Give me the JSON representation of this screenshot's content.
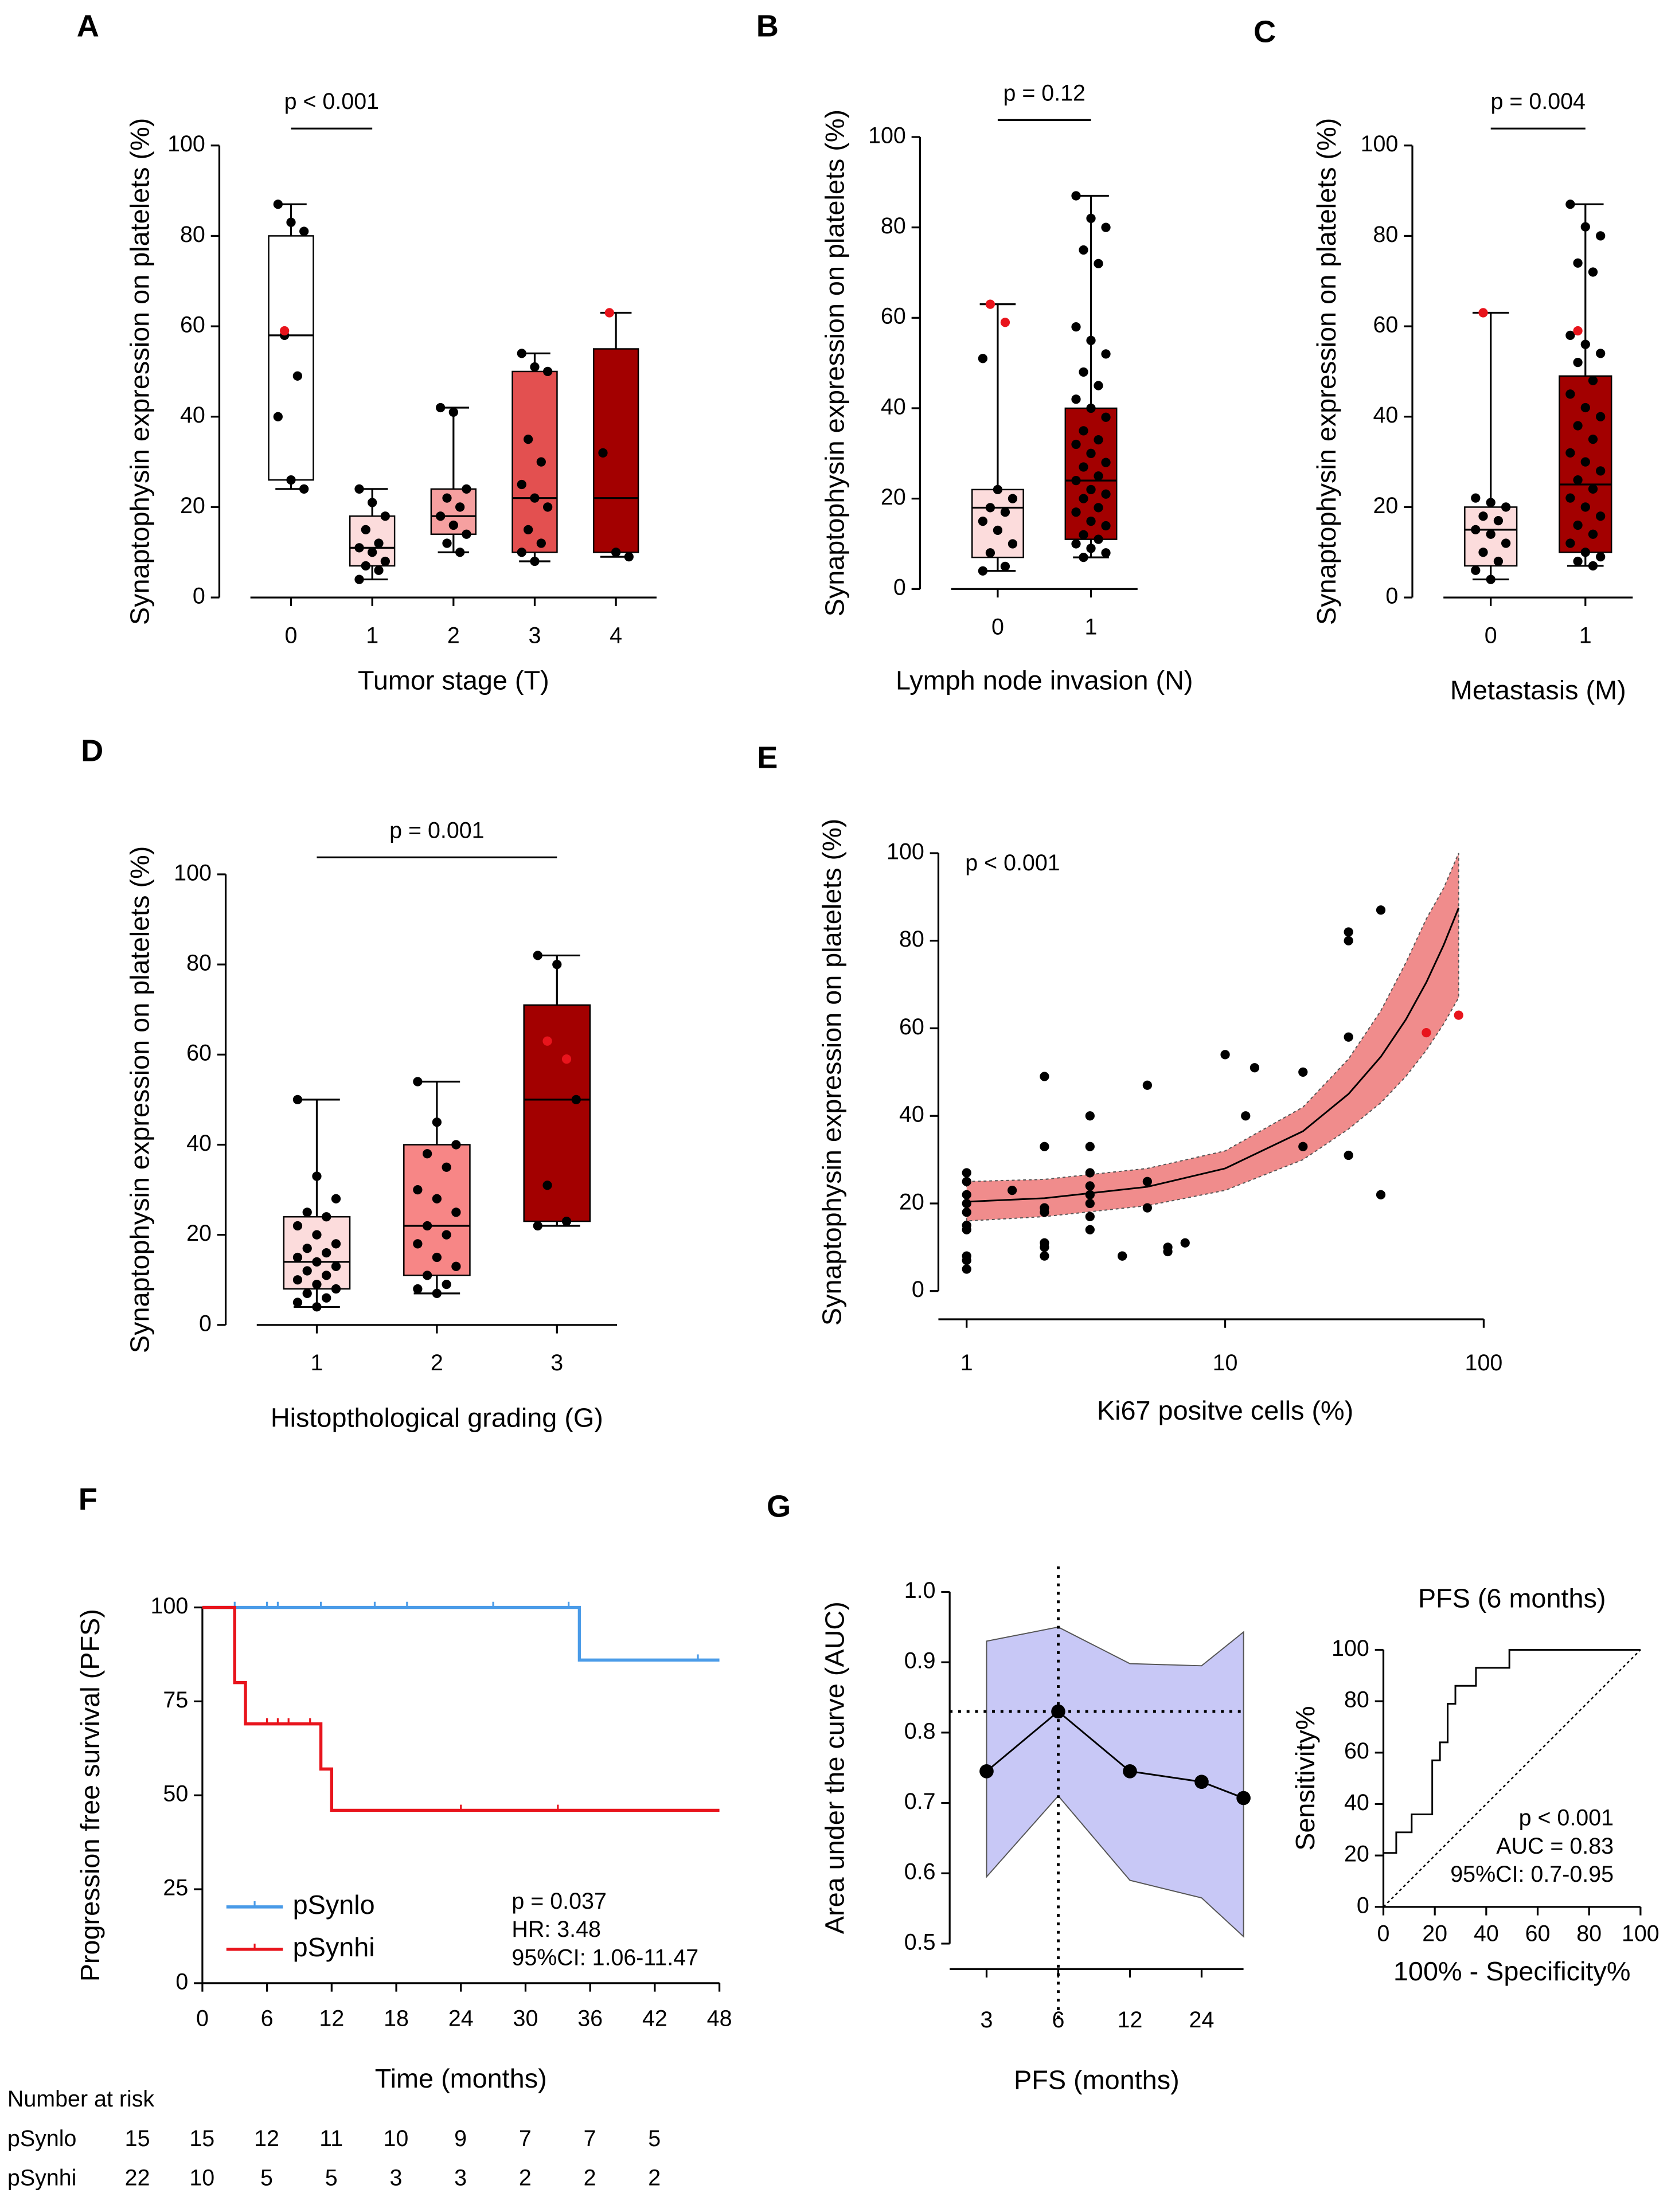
{
  "chart_data": [
    {
      "type": "box",
      "panel": "A",
      "y_label": "Synaptophysin expression on platelets (%)",
      "x_label": "Tumor stage (T)",
      "categories": [
        "0",
        "1",
        "2",
        "3",
        "4"
      ],
      "ylim": [
        0,
        100
      ],
      "yticks": [
        0,
        20,
        40,
        60,
        80,
        100
      ],
      "point_color": "#000000",
      "highlight_color": "#e8141c",
      "groups": [
        {
          "color": "#ffffff",
          "box": [
            24,
            26,
            58,
            80,
            87
          ],
          "points": [
            87,
            83,
            81,
            58,
            49,
            40,
            26,
            24
          ],
          "highlight_points": [
            59
          ]
        },
        {
          "color": "#fcdcdc",
          "box": [
            4,
            7,
            11,
            18,
            24
          ],
          "points": [
            24,
            21,
            18,
            15,
            12,
            11,
            10,
            8,
            7,
            6,
            4
          ],
          "highlight_points": []
        },
        {
          "color": "#f6a0a0",
          "box": [
            10,
            14,
            18,
            24,
            42
          ],
          "points": [
            42,
            41,
            24,
            22,
            20,
            18,
            16,
            14,
            12,
            10
          ],
          "highlight_points": []
        },
        {
          "color": "#e35050",
          "box": [
            8,
            10,
            22,
            50,
            54
          ],
          "points": [
            54,
            51,
            50,
            35,
            30,
            25,
            22,
            20,
            15,
            12,
            10,
            8
          ],
          "highlight_points": []
        },
        {
          "color": "#a30000",
          "box": [
            9,
            10,
            22,
            55,
            63
          ],
          "points": [
            32,
            10,
            9
          ],
          "highlight_points": [
            63
          ]
        }
      ],
      "annotation": [
        "p < 0.001"
      ],
      "bracket": [
        "0",
        "1"
      ]
    },
    {
      "type": "box",
      "panel": "B",
      "y_label": "Synaptophysin expression on platelets (%)",
      "x_label": "Lymph node invasion (N)",
      "categories": [
        "0",
        "1"
      ],
      "ylim": [
        0,
        100
      ],
      "yticks": [
        0,
        20,
        40,
        60,
        80,
        100
      ],
      "point_color": "#000000",
      "highlight_color": "#e8141c",
      "groups": [
        {
          "color": "#fcdcdc",
          "box": [
            4,
            7,
            18,
            22,
            63
          ],
          "points": [
            51,
            22,
            20,
            18,
            17,
            15,
            13,
            10,
            8,
            5,
            4
          ],
          "highlight_points": [
            63,
            59
          ]
        },
        {
          "color": "#a30000",
          "box": [
            7,
            11,
            24,
            40,
            87
          ],
          "points": [
            87,
            82,
            80,
            75,
            72,
            58,
            55,
            52,
            48,
            45,
            42,
            40,
            38,
            35,
            33,
            32,
            30,
            28,
            27,
            25,
            24,
            22,
            21,
            20,
            18,
            17,
            15,
            14,
            12,
            11,
            10,
            9,
            8,
            7
          ],
          "highlight_points": []
        }
      ],
      "annotation": [
        "p = 0.12"
      ],
      "bracket": [
        "0",
        "1"
      ]
    },
    {
      "type": "box",
      "panel": "C",
      "y_label": "Synaptophysin expression on platelets (%)",
      "x_label": "Metastasis (M)",
      "categories": [
        "0",
        "1"
      ],
      "ylim": [
        0,
        100
      ],
      "yticks": [
        0,
        20,
        40,
        60,
        80,
        100
      ],
      "point_color": "#000000",
      "highlight_color": "#e8141c",
      "groups": [
        {
          "color": "#fcdcdc",
          "box": [
            4,
            7,
            15,
            20,
            63
          ],
          "points": [
            22,
            21,
            20,
            18,
            17,
            15,
            14,
            12,
            10,
            8,
            6,
            4
          ],
          "highlight_points": [
            63
          ]
        },
        {
          "color": "#a30000",
          "box": [
            7,
            10,
            25,
            49,
            87
          ],
          "points": [
            87,
            82,
            80,
            74,
            72,
            58,
            56,
            54,
            52,
            48,
            45,
            42,
            40,
            38,
            35,
            32,
            30,
            28,
            26,
            24,
            22,
            20,
            18,
            16,
            14,
            12,
            10,
            9,
            8,
            7
          ],
          "highlight_points": [
            59
          ]
        }
      ],
      "annotation": [
        "p = 0.004"
      ],
      "bracket": [
        "0",
        "1"
      ]
    },
    {
      "type": "box",
      "panel": "D",
      "y_label": "Synaptophysin expression on platelets (%)",
      "x_label": "Histopthological grading (G)",
      "categories": [
        "1",
        "2",
        "3"
      ],
      "ylim": [
        0,
        100
      ],
      "yticks": [
        0,
        20,
        40,
        60,
        80,
        100
      ],
      "point_color": "#000000",
      "highlight_color": "#e8141c",
      "groups": [
        {
          "color": "#fcdcdc",
          "box": [
            4,
            8,
            14,
            24,
            50
          ],
          "points": [
            50,
            33,
            28,
            25,
            24,
            22,
            20,
            18,
            17,
            16,
            15,
            14,
            13,
            12,
            11,
            10,
            9,
            8,
            7,
            6,
            5,
            4
          ],
          "highlight_points": []
        },
        {
          "color": "#f78686",
          "box": [
            7,
            11,
            22,
            40,
            54
          ],
          "points": [
            54,
            45,
            40,
            38,
            35,
            30,
            28,
            25,
            22,
            20,
            18,
            15,
            13,
            11,
            9,
            8,
            7
          ],
          "highlight_points": []
        },
        {
          "color": "#a30000",
          "box": [
            22,
            23,
            50,
            71,
            82
          ],
          "points": [
            82,
            80,
            50,
            31,
            23,
            22
          ],
          "highlight_points": [
            63,
            59
          ]
        }
      ],
      "annotation": [
        "p = 0.001"
      ],
      "bracket": [
        "1",
        "3"
      ]
    },
    {
      "type": "scatter",
      "panel": "E",
      "y_label": "Synaptophysin expression on platelets (%)",
      "x_label": "Ki67 positve cells (%)",
      "xlog": true,
      "xlim": [
        1,
        100
      ],
      "xticks": [
        1,
        10,
        100
      ],
      "ylim": [
        0,
        100
      ],
      "yticks": [
        0,
        20,
        40,
        60,
        80,
        100
      ],
      "point_color": "#000000",
      "highlight_color": "#e8141c",
      "x": [
        1,
        1,
        1,
        1,
        1,
        1,
        1,
        1,
        1,
        1,
        1.5,
        2,
        2,
        2,
        2,
        2,
        2,
        2,
        3,
        3,
        3,
        3,
        3,
        3,
        3,
        3,
        4,
        4,
        5,
        5,
        5,
        6,
        6,
        7,
        10,
        12,
        13,
        20,
        20,
        30,
        30,
        30,
        30,
        40,
        40
      ],
      "y": [
        5,
        7,
        8,
        14,
        15,
        18,
        20,
        22,
        25,
        27,
        23,
        8,
        10,
        11,
        18,
        19,
        33,
        49,
        14,
        17,
        20,
        22,
        24,
        27,
        33,
        40,
        8,
        8,
        19,
        25,
        47,
        9,
        10,
        11,
        54,
        40,
        51,
        33,
        50,
        31,
        58,
        80,
        82,
        87,
        22
      ],
      "highlight_x": [
        60,
        80
      ],
      "highlight_y": [
        59,
        63
      ],
      "fit": {
        "color": "#000000",
        "band_color": "#f08c8c",
        "x": [
          1,
          2,
          5,
          10,
          20,
          30,
          40,
          50,
          60,
          70,
          80
        ],
        "y": [
          20.4,
          21.2,
          23.8,
          28,
          36.5,
          45,
          53.5,
          62,
          70.5,
          79,
          87.5
        ],
        "lower": [
          16,
          17,
          19.5,
          23,
          30,
          37,
          43,
          49,
          55,
          61,
          67
        ],
        "upper": [
          25,
          25.5,
          28,
          32,
          42,
          53,
          64,
          75,
          85,
          92,
          100
        ]
      },
      "annotation": [
        "p < 0.001"
      ]
    },
    {
      "type": "line",
      "panel": "F",
      "y_label": "Progression free survival (PFS)",
      "x_label": "Time (months)",
      "xlim": [
        0,
        48
      ],
      "xticks": [
        0,
        6,
        12,
        18,
        24,
        30,
        36,
        42,
        48
      ],
      "ylim": [
        0,
        100
      ],
      "yticks": [
        0,
        25,
        50,
        75,
        100
      ],
      "series": [
        {
          "name": "pSynlo",
          "color": "#4a9be8",
          "x": [
            0,
            35,
            35,
            48
          ],
          "values": [
            100,
            100,
            86,
            86
          ],
          "censored_x": [
            3,
            6,
            7,
            11,
            16,
            19,
            27,
            34,
            46
          ],
          "censored_y": [
            100,
            100,
            100,
            100,
            100,
            100,
            100,
            100,
            86
          ]
        },
        {
          "name": "pSynhi",
          "color": "#e8141c",
          "x": [
            0,
            3,
            3,
            4,
            4,
            11,
            11,
            12,
            12,
            48
          ],
          "values": [
            100,
            100,
            80,
            80,
            69,
            69,
            57,
            57,
            46,
            46
          ],
          "censored_x": [
            6,
            7,
            8,
            10,
            24,
            33
          ],
          "censored_y": [
            69,
            69,
            69,
            69,
            46,
            46
          ]
        }
      ],
      "annotation": [
        "p = 0.037",
        "HR: 3.48",
        "95%CI: 1.06-11.47"
      ],
      "risk_table": {
        "title": "Number at risk",
        "rows": [
          {
            "label": "pSynlo",
            "values": [
              15,
              15,
              12,
              11,
              10,
              9,
              7,
              7,
              5
            ]
          },
          {
            "label": "pSynhi",
            "values": [
              22,
              10,
              5,
              5,
              3,
              3,
              2,
              2,
              2
            ]
          }
        ]
      }
    },
    {
      "type": "line",
      "panel": "G",
      "y_label": "Area under the curve (AUC)",
      "x_label": "PFS (months)",
      "xlog": true,
      "xlim": [
        2.1,
        36
      ],
      "xticks": [
        3,
        6,
        12,
        24
      ],
      "ylim": [
        0.5,
        1
      ],
      "yticks": [
        0.5,
        0.6,
        0.7,
        0.8,
        0.9,
        {
          "value": 1,
          "label": "1.0"
        }
      ],
      "series": [
        {
          "color": "#000000",
          "band_color": "#c8c8f6",
          "x": [
            3,
            6,
            12,
            24,
            36
          ],
          "values": [
            0.745,
            0.83,
            0.745,
            0.73,
            0.707
          ],
          "upper": [
            0.93,
            0.95,
            0.898,
            0.895,
            0.943
          ],
          "lower": [
            0.595,
            0.71,
            0.59,
            0.565,
            0.51
          ]
        }
      ],
      "reference": {
        "x": 6,
        "y": 0.83
      }
    },
    {
      "type": "line",
      "title": "PFS (6 months)",
      "y_label": "Sensitivity%",
      "x_label": "100% - Specificity%",
      "xlim": [
        0,
        100
      ],
      "xticks": [
        0,
        20,
        40,
        60,
        80,
        100
      ],
      "ylim": [
        0,
        100
      ],
      "yticks": [
        0,
        20,
        40,
        60,
        80,
        100
      ],
      "series": [
        {
          "color": "#000000",
          "x": [
            0,
            0,
            5,
            5,
            11,
            11,
            19,
            19,
            22,
            22,
            25,
            25,
            28,
            28,
            36,
            36,
            49,
            49,
            100
          ],
          "values": [
            0,
            21,
            21,
            29,
            29,
            36,
            36,
            57,
            57,
            64,
            64,
            79,
            79,
            86,
            86,
            93,
            93,
            100,
            100
          ]
        }
      ],
      "annotation": [
        "p < 0.001",
        "AUC = 0.83",
        "95%CI: 0.7-0.95"
      ]
    }
  ]
}
